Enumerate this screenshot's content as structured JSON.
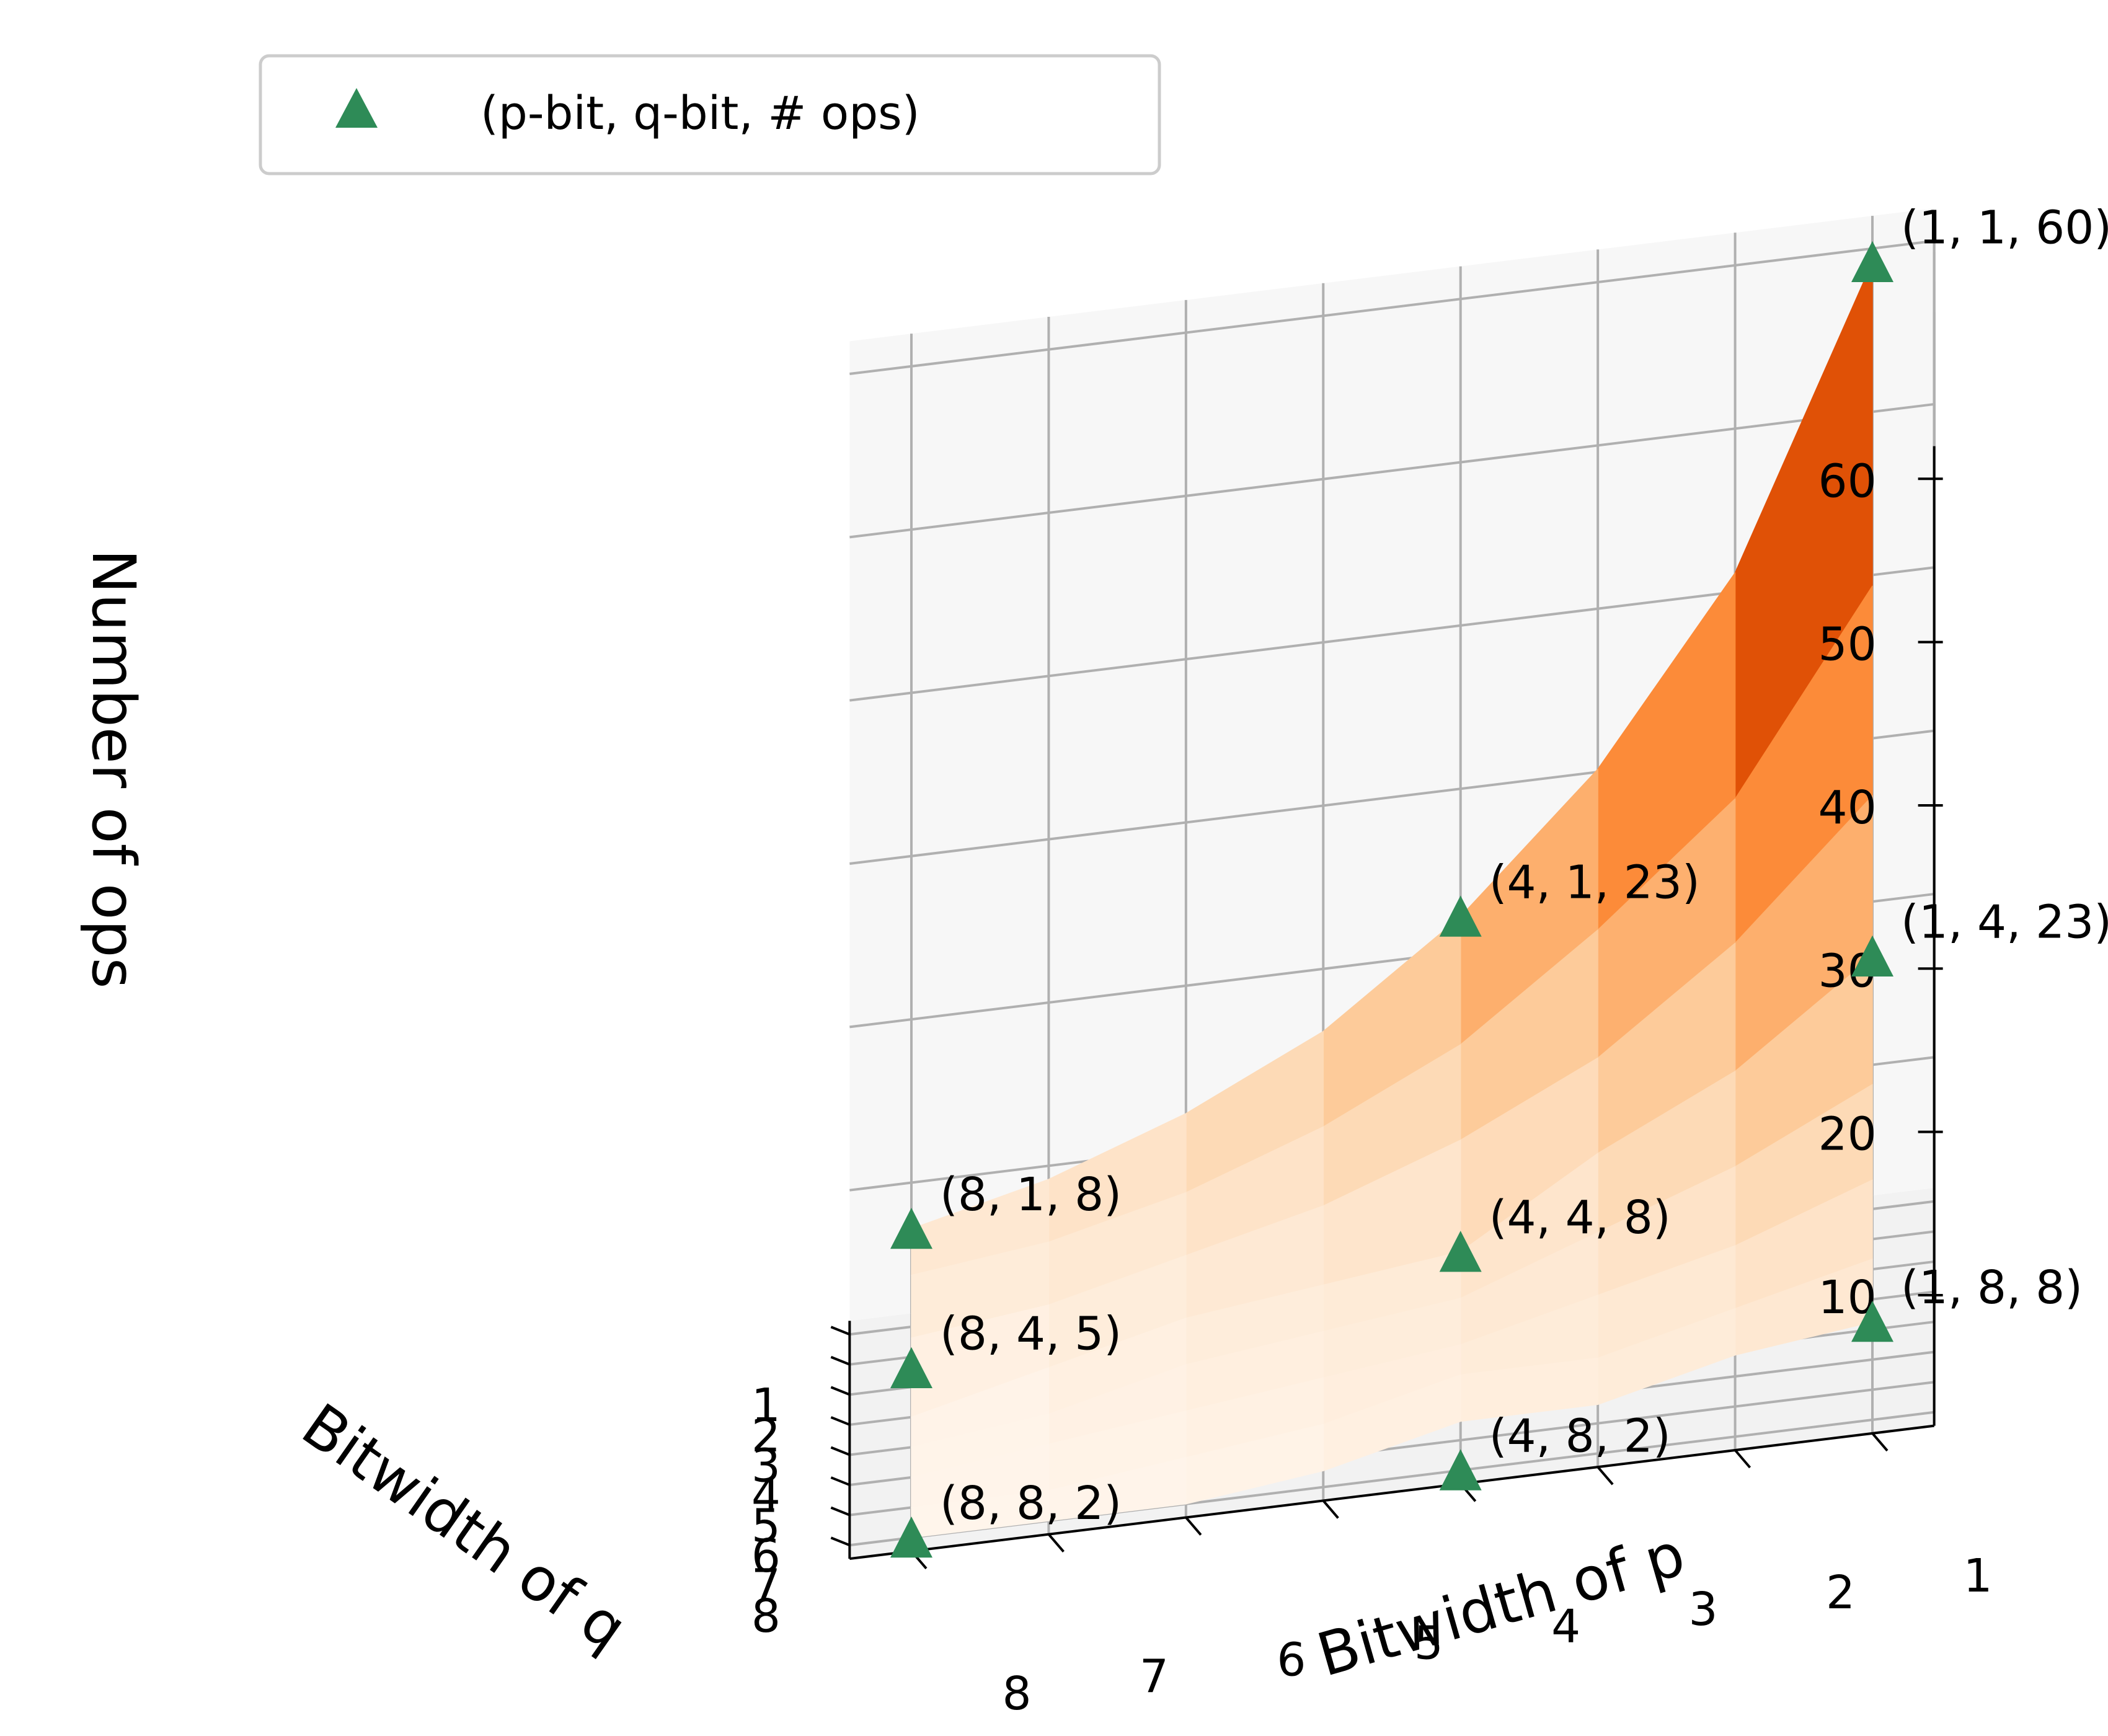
{
  "chart_data": {
    "type": "surface3d",
    "xlabel": "Bitwidth of p",
    "ylabel": "Bitwidth of q",
    "zlabel": "Number of ops",
    "x_ticks": [
      1,
      2,
      3,
      4,
      5,
      6,
      7,
      8
    ],
    "y_ticks": [
      1,
      2,
      3,
      4,
      5,
      6,
      7,
      8
    ],
    "z_ticks": [
      10,
      20,
      30,
      40,
      50,
      60
    ],
    "zlim": [
      2,
      62
    ],
    "grid": true,
    "colormap": "Oranges",
    "surface": {
      "x": [
        1,
        2,
        3,
        4,
        5,
        6,
        7,
        8
      ],
      "y": [
        1,
        2,
        3,
        4,
        5,
        6,
        7,
        8
      ],
      "z": [
        [
          60,
          42,
          31,
          23,
          17,
          13,
          10,
          8
        ],
        [
          42,
          30,
          23,
          17,
          13,
          10,
          8,
          7
        ],
        [
          31,
          23,
          17,
          13,
          10,
          8,
          6,
          5
        ],
        [
          23,
          17,
          13,
          8,
          7,
          6,
          4,
          2
        ],
        [
          17,
          13,
          10,
          7,
          6,
          5,
          3,
          2
        ],
        [
          13,
          10,
          8,
          6,
          5,
          4,
          3,
          2
        ],
        [
          10,
          8,
          6,
          6,
          4,
          3,
          2,
          2
        ],
        [
          8,
          7,
          5,
          5,
          3,
          2,
          2,
          2
        ]
      ]
    },
    "series": [
      {
        "name": "(p-bit, q-bit, # ops)",
        "color": "#2e8b57",
        "marker": "triangle",
        "points": [
          {
            "x": 1,
            "y": 1,
            "z": 60,
            "label": "(1, 1, 60)"
          },
          {
            "x": 1,
            "y": 4,
            "z": 23,
            "label": "(1, 4, 23)"
          },
          {
            "x": 4,
            "y": 1,
            "z": 23,
            "label": "(4, 1, 23)"
          },
          {
            "x": 1,
            "y": 8,
            "z": 8,
            "label": "(1, 8, 8)"
          },
          {
            "x": 4,
            "y": 4,
            "z": 8,
            "label": "(4, 4, 8)"
          },
          {
            "x": 8,
            "y": 1,
            "z": 8,
            "label": "(8, 1, 8)"
          },
          {
            "x": 4,
            "y": 8,
            "z": 2,
            "label": "(4, 8, 2)"
          },
          {
            "x": 8,
            "y": 4,
            "z": 5,
            "label": "(8, 4, 5)"
          },
          {
            "x": 8,
            "y": 8,
            "z": 2,
            "label": "(8, 8, 2)"
          }
        ]
      }
    ],
    "legend": {
      "position": "top-left",
      "label": "(p-bit, q-bit, # ops)"
    }
  }
}
